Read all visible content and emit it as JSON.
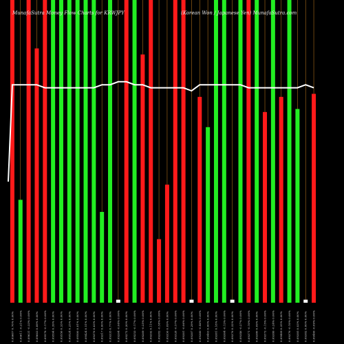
{
  "chart_data": {
    "type": "bar",
    "title_left": "MunafaSutra Money Flow Charts for KRWJPY",
    "title_right": "(Korean Won / Japanese Yen) MunafaSutra.com",
    "colors": {
      "background": "#000000",
      "up": "#22ee22",
      "down": "#ff1a1a",
      "neutral": "#ffffff",
      "line": "#ffffff",
      "grid": "#b0701a"
    },
    "categories": [
      "0.09687 0.76% 0.00%",
      "0.09611 -0.21% 0.00%",
      "0.09631 -0.33% 0.00%",
      "0.09663 0.89% 0.00%",
      "0.09578 -0.17% 0.00%",
      "0.09594 0.39% 0.00%",
      "0.09556 0.33% 0.00%",
      "0.09524 0.25% 0.00%",
      "0.09500 0.81% 0.00%",
      "0.09424 0.51% 0.00%",
      "0.09376 0.63% 0.00%",
      "0.09317 0.00% 0.00%",
      "0.09335 0.77% 0.00%",
      "0.09264 -0.08% 0.00%",
      "0.09272 0.20% 0.00%",
      "0.09253 -0.17% 0.00%",
      "0.09269 -0.25% 0.00%",
      "0.09292 0.11% 0.00%",
      "0.09282 -0.58% 0.00%",
      "0.09336 0.09% 0.00%",
      "0.09328 -0.57% 0.00%",
      "0.09381 -0.06% 0.00%",
      "0.09387 0.29% 0.00%",
      "0.09360 -0.46% 0.00%",
      "0.09403 0.00% 0.00%",
      "0.09381 0.18% 0.00%",
      "0.09364 -0.13% 0.00%",
      "0.09376 0.32% 0.00%",
      "0.09346 -0.27% 0.00%",
      "0.09371 -0.10% 0.00%",
      "0.09380 0.09% 0.00%",
      "0.09372 -0.15% 0.00%",
      "0.09386 -0.24% 0.00%",
      "0.09409 0.35% 0.00%",
      "0.09376 -0.10% 0.00%",
      "0.09385 0.03% 0.00%",
      "0.09382 0.00% 0.00%",
      "0.09406 -0.09% 0.00%"
    ],
    "bars": [
      {
        "v": 1.0,
        "c": "down"
      },
      {
        "v": 0.34,
        "c": "up"
      },
      {
        "v": 1.0,
        "c": "down"
      },
      {
        "v": 0.84,
        "c": "down"
      },
      {
        "v": 1.0,
        "c": "down"
      },
      {
        "v": 1.0,
        "c": "up"
      },
      {
        "v": 1.0,
        "c": "up"
      },
      {
        "v": 1.0,
        "c": "up"
      },
      {
        "v": 1.0,
        "c": "up"
      },
      {
        "v": 1.0,
        "c": "up"
      },
      {
        "v": 1.0,
        "c": "up"
      },
      {
        "v": 0.3,
        "c": "up"
      },
      {
        "v": 1.0,
        "c": "up"
      },
      {
        "v": 0.01,
        "c": "neutral"
      },
      {
        "v": 1.0,
        "c": "down"
      },
      {
        "v": 1.0,
        "c": "up"
      },
      {
        "v": 0.82,
        "c": "down"
      },
      {
        "v": 1.0,
        "c": "down"
      },
      {
        "v": 0.21,
        "c": "down"
      },
      {
        "v": 0.39,
        "c": "down"
      },
      {
        "v": 1.0,
        "c": "down"
      },
      {
        "v": 1.0,
        "c": "down"
      },
      {
        "v": 0.01,
        "c": "neutral"
      },
      {
        "v": 0.68,
        "c": "down"
      },
      {
        "v": 0.58,
        "c": "up"
      },
      {
        "v": 1.0,
        "c": "up"
      },
      {
        "v": 1.0,
        "c": "up"
      },
      {
        "v": 0.01,
        "c": "neutral"
      },
      {
        "v": 1.0,
        "c": "up"
      },
      {
        "v": 1.0,
        "c": "down"
      },
      {
        "v": 1.0,
        "c": "up"
      },
      {
        "v": 0.63,
        "c": "down"
      },
      {
        "v": 1.0,
        "c": "up"
      },
      {
        "v": 0.68,
        "c": "down"
      },
      {
        "v": 1.0,
        "c": "up"
      },
      {
        "v": 0.64,
        "c": "up"
      },
      {
        "v": 0.01,
        "c": "neutral"
      },
      {
        "v": 0.69,
        "c": "down"
      }
    ],
    "line": [
      0.72,
      0.72,
      0.72,
      0.72,
      0.71,
      0.71,
      0.71,
      0.71,
      0.71,
      0.71,
      0.71,
      0.72,
      0.72,
      0.73,
      0.73,
      0.72,
      0.72,
      0.71,
      0.71,
      0.71,
      0.71,
      0.71,
      0.7,
      0.72,
      0.72,
      0.72,
      0.72,
      0.72,
      0.72,
      0.71,
      0.71,
      0.71,
      0.71,
      0.71,
      0.71,
      0.71,
      0.72,
      0.71
    ],
    "line_start": 0.4,
    "ylim": [
      0,
      1
    ]
  }
}
